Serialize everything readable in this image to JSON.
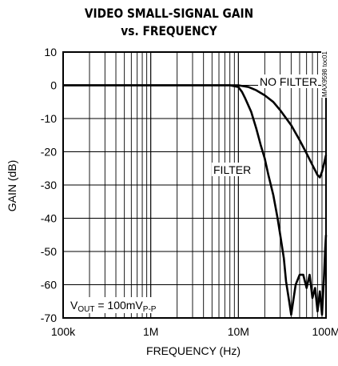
{
  "chart_data": {
    "type": "line",
    "title_line1": "VIDEO SMALL-SIGNAL GAIN",
    "title_line2": "vs. FREQUENCY",
    "xlabel": "FREQUENCY (Hz)",
    "ylabel": "GAIN (dB)",
    "x_scale": "log",
    "xlim": [
      100000,
      100000000
    ],
    "ylim": [
      -70,
      10
    ],
    "x_ticks": [
      {
        "value": 100000,
        "label": "100k"
      },
      {
        "value": 1000000,
        "label": "1M"
      },
      {
        "value": 10000000,
        "label": "10M"
      },
      {
        "value": 100000000,
        "label": "100M"
      }
    ],
    "y_ticks": [
      {
        "value": 10,
        "label": "10"
      },
      {
        "value": 0,
        "label": "0"
      },
      {
        "value": -10,
        "label": "-10"
      },
      {
        "value": -20,
        "label": "-20"
      },
      {
        "value": -30,
        "label": "-30"
      },
      {
        "value": -40,
        "label": "-40"
      },
      {
        "value": -50,
        "label": "-50"
      },
      {
        "value": -60,
        "label": "-60"
      },
      {
        "value": -70,
        "label": "-70"
      }
    ],
    "grid": true,
    "series": [
      {
        "name": "NO FILTER",
        "color": "#000000",
        "x": [
          100000,
          1000000,
          5000000,
          10000000,
          13000000,
          16000000,
          20000000,
          25000000,
          30000000,
          40000000,
          50000000,
          60000000,
          70000000,
          80000000,
          85000000,
          90000000,
          95000000,
          100000000
        ],
        "y": [
          0,
          0,
          0,
          0,
          -0.5,
          -1.5,
          -3,
          -5,
          -7.5,
          -12,
          -16.5,
          -20.5,
          -24,
          -27,
          -27.7,
          -26,
          -23.5,
          -21
        ]
      },
      {
        "name": "FILTER",
        "color": "#000000",
        "x": [
          100000,
          1000000,
          5000000,
          8000000,
          10000000,
          11000000,
          12000000,
          14000000,
          16000000,
          18000000,
          20000000,
          22000000,
          25000000,
          28000000,
          30000000,
          33000000,
          35000000,
          38000000,
          40000000,
          45000000,
          50000000,
          55000000,
          60000000,
          65000000,
          70000000,
          75000000,
          80000000,
          85000000,
          90000000,
          95000000,
          98000000,
          100000000
        ],
        "y": [
          0,
          0,
          0,
          0,
          -0.5,
          -2,
          -4,
          -8,
          -13,
          -18,
          -22,
          -27,
          -33,
          -40,
          -45,
          -52,
          -59,
          -65,
          -69,
          -60,
          -57,
          -57,
          -61,
          -57,
          -64,
          -61,
          -68,
          -62,
          -69,
          -57,
          -49,
          -45
        ]
      }
    ],
    "annotations": {
      "no_filter": "NO FILTER",
      "filter": "FILTER",
      "vout_base": "V",
      "vout_sub": "OUT",
      "vout_mid": " = 100mV",
      "vout_sub2": "P-P",
      "part_code": "MAX9598 toc01"
    }
  }
}
